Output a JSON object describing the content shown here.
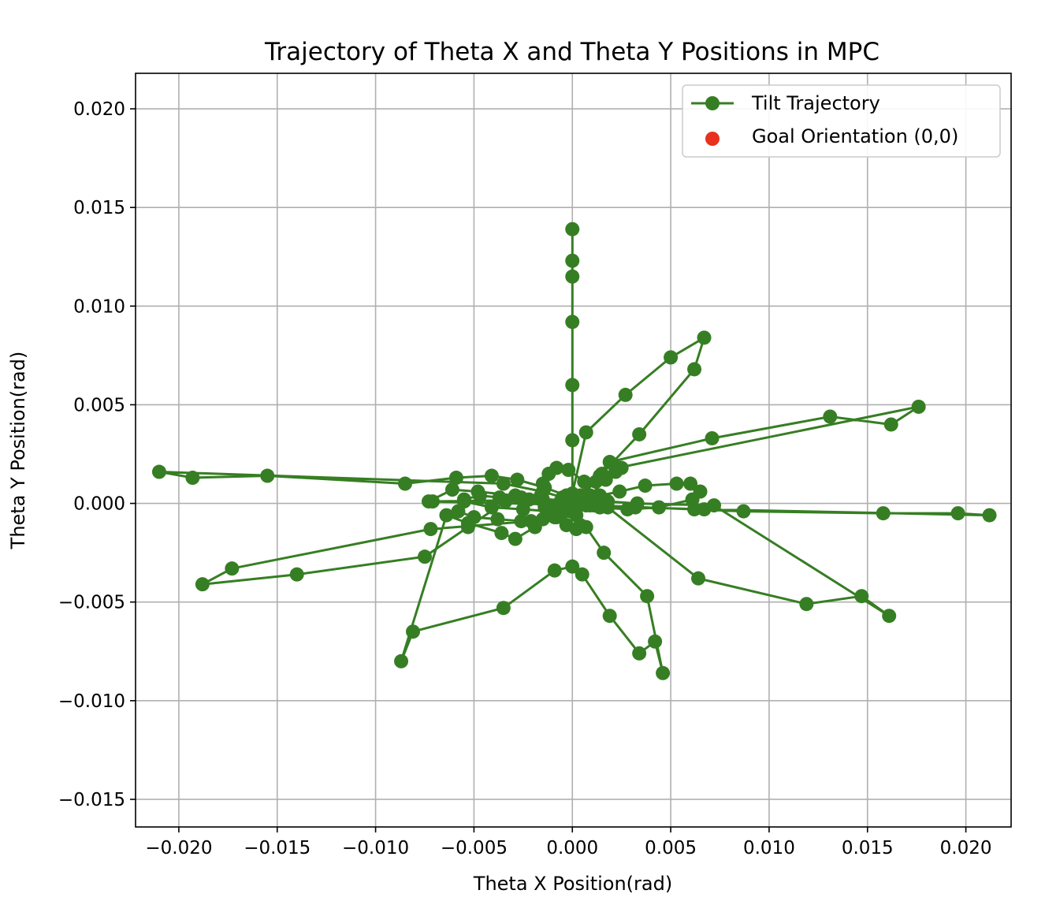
{
  "chart_data": {
    "type": "line",
    "title": "Trajectory of Theta X and Theta Y Positions in MPC",
    "xlabel": "Theta X Position(rad)",
    "ylabel": "Theta Y Position(rad)",
    "xlim": [
      -0.0222,
      0.0223
    ],
    "ylim": [
      -0.0164,
      0.0218
    ],
    "grid": true,
    "legend_position": "top-right",
    "x_ticks": [
      -0.02,
      -0.015,
      -0.01,
      -0.005,
      0.0,
      0.005,
      0.01,
      0.015,
      0.02
    ],
    "x_tick_labels": [
      "−0.020",
      "−0.015",
      "−0.010",
      "−0.005",
      "0.000",
      "0.005",
      "0.010",
      "0.015",
      "0.020"
    ],
    "y_ticks": [
      0.02,
      0.015,
      0.01,
      0.005,
      0.0,
      -0.005,
      -0.01,
      -0.015
    ],
    "y_tick_labels": [
      "0.020",
      "0.015",
      "0.010",
      "0.005",
      "0.000",
      "−0.005",
      "−0.010",
      "−0.015"
    ],
    "series": [
      {
        "name": "Tilt Trajectory",
        "color": "#367e23",
        "marker": "circle",
        "x": [
          0.0,
          0.0,
          0.0,
          0.0,
          0.0,
          0.0,
          0.0,
          0.0007,
          0.0027,
          0.005,
          0.0067,
          0.0062,
          0.0034,
          0.0015,
          0.0004,
          -0.0002,
          -0.0011,
          -0.0025,
          -0.0041,
          -0.0055,
          -0.0071,
          0.0011,
          0.0062,
          0.0087,
          0.0158,
          0.0196,
          0.0212,
          0.0067,
          0.0032,
          0.0009,
          -0.0003,
          -0.0015,
          -0.0029,
          -0.0048,
          -0.0061,
          -0.0073,
          0.0001,
          0.0019,
          0.0071,
          0.0131,
          0.0162,
          0.0176,
          0.0023,
          0.0012,
          0.0003,
          -0.0008,
          -0.0019,
          -0.0029,
          -0.0036,
          -0.0053,
          -0.0064,
          -0.0087,
          -0.0081,
          -0.0035,
          -0.0009,
          0.0,
          0.0005,
          0.0019,
          0.0034,
          0.0042,
          0.0046,
          0.0038,
          0.0016,
          0.0007,
          -0.0001,
          -0.0011,
          -0.0022,
          -0.0034,
          -0.0053,
          -0.0075,
          -0.014,
          -0.0188,
          -0.0173,
          -0.0072,
          -0.0021,
          -0.0012,
          -0.0004,
          0.0007,
          0.0018,
          0.0064,
          0.0119,
          0.0147,
          0.0161,
          0.0072,
          0.0033,
          0.0018,
          0.0008,
          -0.0003,
          -0.0014,
          -0.0028,
          -0.0041,
          -0.0059,
          -0.0085,
          -0.0155,
          -0.0193,
          -0.021,
          -0.0035,
          -0.0015,
          -0.0005,
          0.0004,
          0.0014,
          0.0024,
          0.0037,
          0.0053,
          0.006,
          0.0065,
          0.0061,
          0.0044,
          0.0028,
          0.0014,
          0.0003,
          -0.0006,
          -0.0016,
          -0.0026,
          -0.0037,
          -0.0047,
          -0.0055,
          -0.0058,
          -0.005,
          -0.0038,
          -0.0026,
          -0.0015,
          -0.0006,
          0.0001,
          0.0009,
          0.0017,
          0.0022,
          0.0025,
          0.0022,
          0.0014,
          0.0006,
          -0.0002,
          -0.0008,
          -0.0012,
          -0.0015,
          -0.0016,
          -0.0014,
          -0.0009,
          -0.0003,
          0.0002,
          0.0004,
          0.0002,
          0.0
        ],
        "y": [
          0.0139,
          0.0123,
          0.0115,
          0.0092,
          0.006,
          0.0032,
          0.0005,
          0.0036,
          0.0055,
          0.0074,
          0.0084,
          0.0068,
          0.0035,
          0.0015,
          0.0004,
          -0.0002,
          -0.0004,
          -0.0003,
          -0.0002,
          0.0001,
          0.0001,
          -0.0001,
          -0.0003,
          -0.0004,
          -0.0005,
          -0.0005,
          -0.0006,
          -0.0003,
          -0.0002,
          -0.0001,
          0.0,
          0.0002,
          0.0004,
          0.0006,
          0.0007,
          0.0001,
          0.0002,
          0.0021,
          0.0033,
          0.0044,
          0.004,
          0.0049,
          0.0018,
          0.0011,
          0.0003,
          -0.0007,
          -0.0012,
          -0.0018,
          -0.0015,
          -0.001,
          -0.0006,
          -0.008,
          -0.0065,
          -0.0053,
          -0.0034,
          -0.0032,
          -0.0036,
          -0.0057,
          -0.0076,
          -0.007,
          -0.0086,
          -0.0047,
          -0.0025,
          -0.0012,
          -0.0004,
          -0.0001,
          0.0002,
          0.0001,
          -0.0012,
          -0.0027,
          -0.0036,
          -0.0041,
          -0.0033,
          -0.0013,
          -0.0009,
          -0.0005,
          -0.0002,
          -0.0001,
          -0.0002,
          -0.0038,
          -0.0051,
          -0.0047,
          -0.0057,
          -0.0001,
          0.0,
          0.0001,
          0.0002,
          0.0004,
          0.0008,
          0.0012,
          0.0014,
          0.0013,
          0.001,
          0.0014,
          0.0013,
          0.0016,
          0.001,
          0.0006,
          0.0003,
          0.0002,
          0.0004,
          0.0006,
          0.0009,
          0.001,
          0.001,
          0.0006,
          0.0002,
          -0.0002,
          -0.0003,
          -0.0002,
          -0.0001,
          0.0001,
          0.0002,
          0.0003,
          0.0003,
          0.0004,
          0.0002,
          -0.0004,
          -0.0007,
          -0.0008,
          -0.0009,
          -0.0008,
          -0.0006,
          -0.0004,
          0.0004,
          0.0012,
          0.0016,
          0.0018,
          0.0017,
          0.0014,
          0.0011,
          0.0017,
          0.0018,
          0.0015,
          0.001,
          0.0004,
          -0.0002,
          -0.0007,
          -0.0011,
          -0.0013,
          -0.0011,
          -0.0006,
          -0.0002
        ]
      },
      {
        "name": "Goal Orientation (0,0)",
        "color": "#e8311e",
        "marker": "circle",
        "x": [
          0.0
        ],
        "y": [
          0.0
        ]
      }
    ]
  }
}
